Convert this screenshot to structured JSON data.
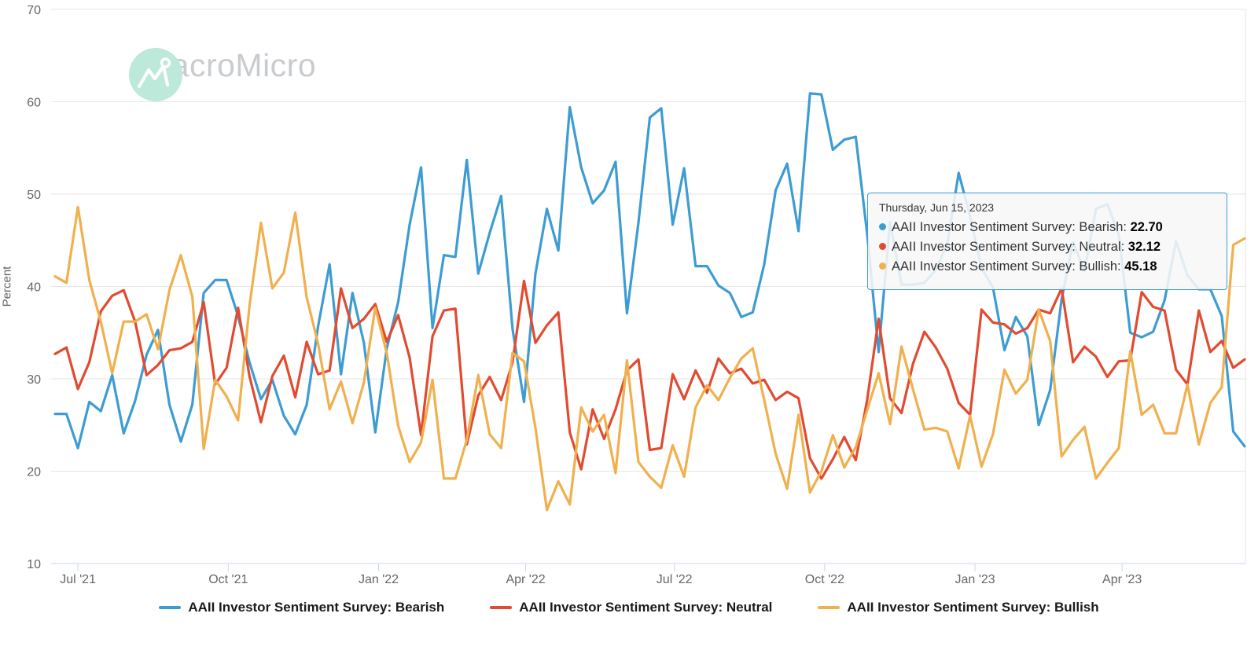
{
  "logo": {
    "text": "MacroMicro",
    "circle_color": "#bce9d9",
    "glyph_color": "#ffffff",
    "text_color": "#c9cccf"
  },
  "axes": {
    "y_label": "Percent",
    "y_ticks": [
      70,
      60,
      50,
      40,
      30,
      20,
      10
    ],
    "x_ticks": [
      {
        "label": "Jul '21",
        "date": "2021-07-01"
      },
      {
        "label": "Oct '21",
        "date": "2021-10-01"
      },
      {
        "label": "Jan '22",
        "date": "2022-01-01"
      },
      {
        "label": "Apr '22",
        "date": "2022-04-01"
      },
      {
        "label": "Jul '22",
        "date": "2022-07-01"
      },
      {
        "label": "Oct '22",
        "date": "2022-10-01"
      },
      {
        "label": "Jan '23",
        "date": "2023-01-01"
      },
      {
        "label": "Apr '23",
        "date": "2023-04-01"
      }
    ],
    "grid_color": "#e6e6e6",
    "axis_line_color": "#ccd6eb",
    "label_color": "#666666"
  },
  "tooltip": {
    "date": "Thursday, Jun 15, 2023",
    "rows": [
      {
        "label": "AAII Investor Sentiment Survey: Bearish",
        "value": "22.70",
        "color": "#3d9cd2"
      },
      {
        "label": "AAII Investor Sentiment Survey: Neutral",
        "value": "32.12",
        "color": "#e04b31"
      },
      {
        "label": "AAII Investor Sentiment Survey: Bullish",
        "value": "45.18",
        "color": "#f0b04e"
      }
    ]
  },
  "legend": [
    {
      "label": "AAII Investor Sentiment Survey: Bearish",
      "color": "#3d9cd2"
    },
    {
      "label": "AAII Investor Sentiment Survey: Neutral",
      "color": "#e04b31"
    },
    {
      "label": "AAII Investor Sentiment Survey: Bullish",
      "color": "#f0b04e"
    }
  ],
  "chart_data": {
    "type": "line",
    "title": "",
    "xlabel": "",
    "ylabel": "Percent",
    "ylim": [
      10,
      70
    ],
    "grid": true,
    "legend_position": "bottom",
    "x_dates": [
      "2021-06-17",
      "2021-06-24",
      "2021-07-01",
      "2021-07-08",
      "2021-07-15",
      "2021-07-22",
      "2021-07-29",
      "2021-08-05",
      "2021-08-12",
      "2021-08-19",
      "2021-08-26",
      "2021-09-02",
      "2021-09-09",
      "2021-09-16",
      "2021-09-23",
      "2021-09-30",
      "2021-10-07",
      "2021-10-14",
      "2021-10-21",
      "2021-10-28",
      "2021-11-04",
      "2021-11-11",
      "2021-11-18",
      "2021-11-25",
      "2021-12-02",
      "2021-12-09",
      "2021-12-16",
      "2021-12-23",
      "2021-12-30",
      "2022-01-06",
      "2022-01-13",
      "2022-01-20",
      "2022-01-27",
      "2022-02-03",
      "2022-02-10",
      "2022-02-17",
      "2022-02-24",
      "2022-03-03",
      "2022-03-10",
      "2022-03-17",
      "2022-03-24",
      "2022-03-31",
      "2022-04-07",
      "2022-04-14",
      "2022-04-21",
      "2022-04-28",
      "2022-05-05",
      "2022-05-12",
      "2022-05-19",
      "2022-05-26",
      "2022-06-02",
      "2022-06-09",
      "2022-06-16",
      "2022-06-23",
      "2022-06-30",
      "2022-07-07",
      "2022-07-14",
      "2022-07-21",
      "2022-07-28",
      "2022-08-04",
      "2022-08-11",
      "2022-08-18",
      "2022-08-25",
      "2022-09-01",
      "2022-09-08",
      "2022-09-15",
      "2022-09-22",
      "2022-09-29",
      "2022-10-06",
      "2022-10-13",
      "2022-10-20",
      "2022-10-27",
      "2022-11-03",
      "2022-11-10",
      "2022-11-17",
      "2022-11-24",
      "2022-12-01",
      "2022-12-08",
      "2022-12-15",
      "2022-12-22",
      "2022-12-29",
      "2023-01-05",
      "2023-01-12",
      "2023-01-19",
      "2023-01-26",
      "2023-02-02",
      "2023-02-09",
      "2023-02-16",
      "2023-02-23",
      "2023-03-02",
      "2023-03-09",
      "2023-03-16",
      "2023-03-23",
      "2023-03-30",
      "2023-04-06",
      "2023-04-13",
      "2023-04-20",
      "2023-04-27",
      "2023-05-04",
      "2023-05-11",
      "2023-05-18",
      "2023-05-25",
      "2023-06-01",
      "2023-06-08",
      "2023-06-15"
    ],
    "series": [
      {
        "name": "AAII Investor Sentiment Survey: Bearish",
        "color": "#3d9cd2",
        "values": [
          26.2,
          26.2,
          22.5,
          27.5,
          26.5,
          30.4,
          24.1,
          27.6,
          32.6,
          35.3,
          27.2,
          23.2,
          27.2,
          39.3,
          40.7,
          40.7,
          36.8,
          31.8,
          27.8,
          29.9,
          26.0,
          24.0,
          27.2,
          35.7,
          42.4,
          30.5,
          39.3,
          33.9,
          24.2,
          33.3,
          38.3,
          46.7,
          52.9,
          35.5,
          43.4,
          43.2,
          53.7,
          41.4,
          45.8,
          49.8,
          35.4,
          27.5,
          41.4,
          48.4,
          43.9,
          59.4,
          52.9,
          49.0,
          50.4,
          53.5,
          37.1,
          46.9,
          58.3,
          59.3,
          46.7,
          52.8,
          42.2,
          42.2,
          40.1,
          39.3,
          36.7,
          37.2,
          42.4,
          50.4,
          53.3,
          46.0,
          60.9,
          60.8,
          54.8,
          55.9,
          56.2,
          45.7,
          32.9,
          47.0,
          40.2,
          40.2,
          40.4,
          41.8,
          44.6,
          52.3,
          47.6,
          42.0,
          39.9,
          33.1,
          36.7,
          34.6,
          25.0,
          28.8,
          38.6,
          44.8,
          41.7,
          48.4,
          48.9,
          45.6,
          35.0,
          34.5,
          35.1,
          38.5,
          44.9,
          41.2,
          39.7,
          39.7,
          36.8,
          24.3,
          22.7
        ]
      },
      {
        "name": "AAII Investor Sentiment Survey: Neutral",
        "color": "#e04b31",
        "values": [
          32.7,
          33.4,
          28.9,
          31.8,
          37.3,
          39.0,
          39.6,
          36.2,
          30.4,
          31.5,
          33.1,
          33.3,
          34.0,
          38.3,
          29.4,
          31.2,
          37.7,
          30.3,
          25.3,
          30.3,
          32.5,
          28.0,
          34.0,
          30.5,
          30.9,
          39.8,
          35.5,
          36.5,
          38.1,
          34.0,
          36.9,
          32.3,
          23.9,
          34.6,
          37.4,
          37.6,
          22.9,
          28.2,
          30.2,
          27.7,
          31.8,
          40.6,
          33.9,
          35.8,
          37.2,
          24.2,
          20.2,
          26.7,
          23.5,
          26.7,
          30.9,
          32.1,
          22.3,
          22.5,
          30.5,
          27.8,
          30.9,
          28.5,
          32.2,
          30.6,
          31.1,
          29.5,
          29.9,
          27.7,
          28.6,
          27.9,
          21.4,
          19.2,
          21.3,
          23.7,
          21.2,
          27.7,
          36.5,
          27.9,
          26.3,
          31.6,
          35.1,
          33.4,
          31.1,
          27.4,
          26.1,
          37.5,
          36.1,
          35.9,
          34.9,
          35.5,
          37.5,
          37.1,
          39.8,
          31.8,
          33.5,
          32.4,
          30.2,
          31.9,
          32.0,
          39.4,
          37.8,
          37.4,
          31.0,
          29.4,
          37.4,
          32.9,
          34.1,
          31.2,
          32.1
        ]
      },
      {
        "name": "AAII Investor Sentiment Survey: Bullish",
        "color": "#f0b04e",
        "values": [
          41.1,
          40.4,
          48.6,
          40.7,
          36.2,
          30.6,
          36.2,
          36.2,
          37.0,
          33.2,
          39.6,
          43.4,
          38.9,
          22.4,
          29.9,
          28.1,
          25.5,
          37.9,
          46.9,
          39.8,
          41.5,
          48.0,
          38.8,
          33.8,
          26.7,
          29.7,
          25.2,
          29.6,
          37.7,
          32.8,
          24.9,
          21.0,
          23.1,
          29.9,
          19.2,
          19.2,
          23.4,
          30.4,
          24.0,
          22.5,
          32.8,
          31.9,
          24.7,
          15.8,
          18.9,
          16.4,
          26.9,
          24.3,
          26.1,
          19.8,
          32.0,
          21.0,
          19.4,
          18.2,
          22.8,
          19.4,
          26.9,
          29.3,
          27.7,
          30.1,
          32.2,
          33.3,
          27.7,
          21.9,
          18.1,
          26.1,
          17.7,
          20.0,
          23.9,
          20.4,
          22.6,
          26.6,
          30.6,
          25.1,
          33.5,
          28.9,
          24.5,
          24.7,
          24.3,
          20.3,
          26.0,
          20.5,
          24.0,
          31.0,
          28.4,
          29.9,
          37.5,
          34.1,
          21.6,
          23.4,
          24.8,
          19.2,
          20.9,
          22.5,
          33.0,
          26.1,
          27.2,
          24.1,
          24.1,
          29.4,
          22.9,
          27.4,
          29.1,
          44.5,
          45.2
        ]
      }
    ]
  }
}
